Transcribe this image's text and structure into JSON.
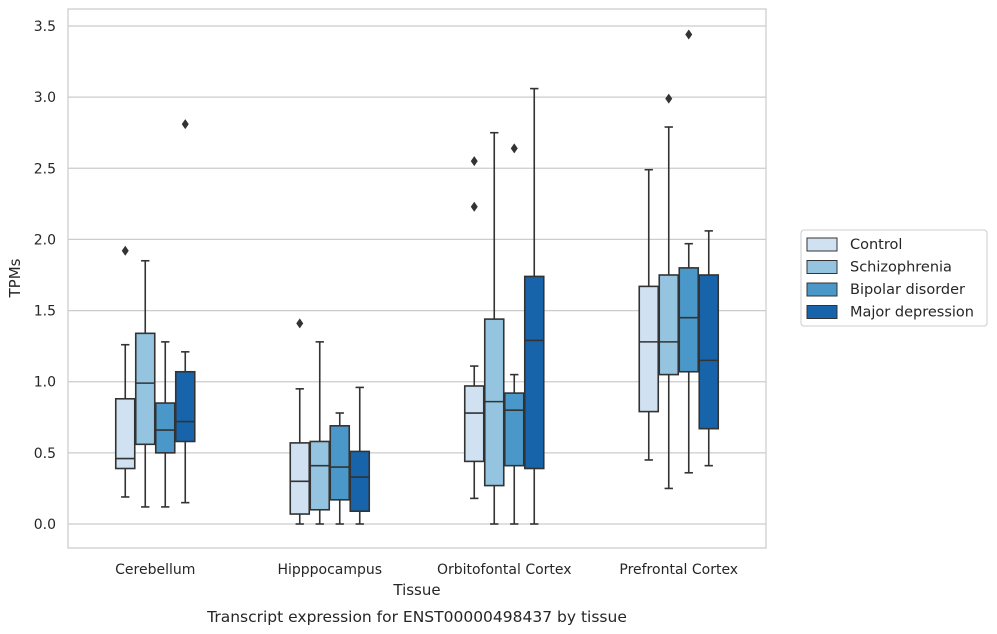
{
  "caption": "Transcript expression for ENST00000498437 by tissue",
  "chart_data": {
    "type": "box",
    "xlabel": "Tissue",
    "ylabel": "TPMs",
    "ylim": [
      -0.17,
      3.62
    ],
    "yticks": [
      0.0,
      0.5,
      1.0,
      1.5,
      2.0,
      2.5,
      3.0,
      3.5
    ],
    "grid": "horizontal",
    "legend_position": "right",
    "categories": [
      "Cerebellum",
      "Hipppocampus",
      "Orbitofontal Cortex",
      "Prefrontal Cortex"
    ],
    "series": [
      {
        "name": "Control",
        "color": "#d0e1f2",
        "boxes": [
          {
            "whislo": 0.19,
            "q1": 0.39,
            "med": 0.46,
            "q3": 0.88,
            "whishi": 1.26,
            "fliers": [
              1.92
            ]
          },
          {
            "whislo": 0.0,
            "q1": 0.07,
            "med": 0.3,
            "q3": 0.57,
            "whishi": 0.95,
            "fliers": [
              1.41
            ]
          },
          {
            "whislo": 0.18,
            "q1": 0.44,
            "med": 0.78,
            "q3": 0.97,
            "whishi": 1.11,
            "fliers": [
              2.23,
              2.55
            ]
          },
          {
            "whislo": 0.45,
            "q1": 0.79,
            "med": 1.28,
            "q3": 1.67,
            "whishi": 2.49,
            "fliers": []
          }
        ]
      },
      {
        "name": "Schizophrenia",
        "color": "#94c4df",
        "boxes": [
          {
            "whislo": 0.12,
            "q1": 0.56,
            "med": 0.99,
            "q3": 1.34,
            "whishi": 1.85,
            "fliers": []
          },
          {
            "whislo": 0.0,
            "q1": 0.1,
            "med": 0.41,
            "q3": 0.58,
            "whishi": 1.28,
            "fliers": []
          },
          {
            "whislo": 0.0,
            "q1": 0.27,
            "med": 0.86,
            "q3": 1.44,
            "whishi": 2.75,
            "fliers": []
          },
          {
            "whislo": 0.25,
            "q1": 1.05,
            "med": 1.28,
            "q3": 1.75,
            "whishi": 2.79,
            "fliers": [
              2.99
            ]
          }
        ]
      },
      {
        "name": "Bipolar disorder",
        "color": "#4a98c9",
        "boxes": [
          {
            "whislo": 0.12,
            "q1": 0.5,
            "med": 0.66,
            "q3": 0.85,
            "whishi": 1.28,
            "fliers": []
          },
          {
            "whislo": 0.0,
            "q1": 0.17,
            "med": 0.4,
            "q3": 0.69,
            "whishi": 0.78,
            "fliers": []
          },
          {
            "whislo": 0.0,
            "q1": 0.41,
            "med": 0.8,
            "q3": 0.92,
            "whishi": 1.05,
            "fliers": [
              2.64
            ]
          },
          {
            "whislo": 0.36,
            "q1": 1.07,
            "med": 1.45,
            "q3": 1.8,
            "whishi": 1.97,
            "fliers": [
              3.44
            ]
          }
        ]
      },
      {
        "name": "Major depression",
        "color": "#1764ab",
        "boxes": [
          {
            "whislo": 0.15,
            "q1": 0.58,
            "med": 0.72,
            "q3": 1.07,
            "whishi": 1.21,
            "fliers": [
              2.81
            ]
          },
          {
            "whislo": 0.0,
            "q1": 0.09,
            "med": 0.33,
            "q3": 0.51,
            "whishi": 0.96,
            "fliers": []
          },
          {
            "whislo": 0.0,
            "q1": 0.39,
            "med": 1.29,
            "q3": 1.74,
            "whishi": 3.06,
            "fliers": []
          },
          {
            "whislo": 0.41,
            "q1": 0.67,
            "med": 1.15,
            "q3": 1.75,
            "whishi": 2.06,
            "fliers": []
          }
        ]
      }
    ]
  }
}
